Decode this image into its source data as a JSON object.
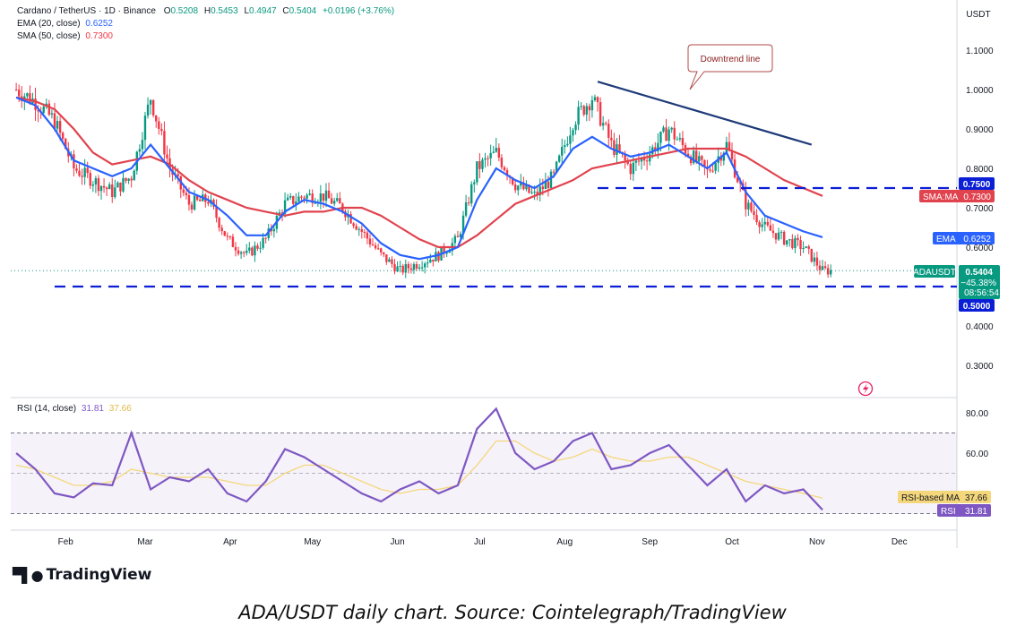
{
  "symbol_line": {
    "name": "Cardano / TetherUS · 1D · Binance",
    "open_label": "O",
    "open": "0.5208",
    "high_label": "H",
    "high": "0.5453",
    "low_label": "L",
    "low": "0.4947",
    "close_label": "C",
    "close": "0.5404",
    "change": "+0.0196 (+3.76%)"
  },
  "indicators": {
    "ema": {
      "label": "EMA (20, close)",
      "value": "0.6252"
    },
    "sma": {
      "label": "SMA (50, close)",
      "value": "0.7300"
    },
    "rsi": {
      "label": "RSI (14, close)",
      "value": "31.81",
      "ma_value": "37.66"
    }
  },
  "currency": "USDT",
  "annotation": "Downtrend line",
  "price_tags": {
    "resistance": "0.7500",
    "sma_label": "SMA:MA",
    "sma": "0.7300",
    "ema_label": "EMA",
    "ema": "0.6252",
    "pair_label": "ADAUSDT",
    "last": "0.5404",
    "pct": "−45.38%",
    "countdown": "08:56:54",
    "support": "0.5000"
  },
  "rsi_tags": {
    "ma_label": "RSI-based MA",
    "ma": "37.66",
    "rsi_label": "RSI",
    "rsi": "31.81"
  },
  "brand": "TradingView",
  "caption": "ADA/USDT daily chart. Source: Cointelegraph/TradingView",
  "colors": {
    "up": "#089981",
    "down": "#f23645",
    "ema": "#2962ff",
    "sma": "#e0434e",
    "rsi": "#7e57c2",
    "rsi_ma": "#f5d77b",
    "trend": "#1e3a78",
    "level": "#0a1fd6"
  },
  "chart_data": [
    {
      "type": "candlestick",
      "title": "",
      "y_axis_ticks": [
        "1.1000",
        "1.0000",
        "0.9000",
        "0.8000",
        "0.7000",
        "0.6000",
        "0.4000",
        "0.3000"
      ],
      "x_axis_ticks": [
        "Feb",
        "Mar",
        "Apr",
        "May",
        "Jun",
        "Jul",
        "Aug",
        "Sep",
        "Oct",
        "Nov",
        "Dec"
      ],
      "ylim": [
        0.27,
        1.18
      ],
      "x": [
        "2024-01-14",
        "2024-01-21",
        "2024-01-28",
        "2024-02-04",
        "2024-02-11",
        "2024-02-18",
        "2024-02-25",
        "2024-03-03",
        "2024-03-10",
        "2024-03-17",
        "2024-03-24",
        "2024-03-31",
        "2024-04-07",
        "2024-04-14",
        "2024-04-21",
        "2024-04-28",
        "2024-05-05",
        "2024-05-12",
        "2024-05-19",
        "2024-05-26",
        "2024-06-02",
        "2024-06-09",
        "2024-06-16",
        "2024-06-23",
        "2024-06-30",
        "2024-07-07",
        "2024-07-14",
        "2024-07-21",
        "2024-07-28",
        "2024-08-04",
        "2024-08-11",
        "2024-08-18",
        "2024-08-25",
        "2024-09-01",
        "2024-09-08",
        "2024-09-15",
        "2024-09-22",
        "2024-09-29",
        "2024-10-06",
        "2024-10-13",
        "2024-10-20",
        "2024-10-27",
        "2024-11-03"
      ],
      "close": [
        1.0,
        0.97,
        0.92,
        0.8,
        0.77,
        0.74,
        0.78,
        0.98,
        0.8,
        0.71,
        0.72,
        0.62,
        0.58,
        0.62,
        0.71,
        0.73,
        0.73,
        0.7,
        0.64,
        0.58,
        0.54,
        0.56,
        0.58,
        0.62,
        0.8,
        0.84,
        0.76,
        0.73,
        0.78,
        0.92,
        0.98,
        0.86,
        0.8,
        0.84,
        0.9,
        0.84,
        0.79,
        0.86,
        0.71,
        0.65,
        0.62,
        0.6,
        0.5404
      ],
      "series": [
        {
          "name": "EMA (20, close)",
          "values": [
            0.98,
            0.96,
            0.9,
            0.82,
            0.8,
            0.78,
            0.8,
            0.86,
            0.8,
            0.74,
            0.72,
            0.68,
            0.63,
            0.63,
            0.69,
            0.72,
            0.71,
            0.69,
            0.66,
            0.61,
            0.58,
            0.57,
            0.58,
            0.6,
            0.72,
            0.8,
            0.77,
            0.75,
            0.78,
            0.85,
            0.88,
            0.85,
            0.83,
            0.84,
            0.86,
            0.83,
            0.8,
            0.84,
            0.74,
            0.68,
            0.66,
            0.64,
            0.6252
          ]
        },
        {
          "name": "SMA (50, close)",
          "values": [
            0.98,
            0.97,
            0.95,
            0.9,
            0.84,
            0.81,
            0.82,
            0.83,
            0.81,
            0.77,
            0.74,
            0.72,
            0.7,
            0.69,
            0.68,
            0.69,
            0.69,
            0.7,
            0.7,
            0.68,
            0.65,
            0.62,
            0.6,
            0.6,
            0.63,
            0.67,
            0.71,
            0.73,
            0.75,
            0.77,
            0.8,
            0.81,
            0.82,
            0.83,
            0.84,
            0.85,
            0.85,
            0.85,
            0.83,
            0.8,
            0.77,
            0.75,
            0.73
          ]
        }
      ],
      "levels": [
        {
          "label": "0.7500",
          "value": 0.75
        },
        {
          "label": "0.5000",
          "value": 0.5
        }
      ],
      "trendline": {
        "label": "Downtrend line",
        "from": [
          "2024-08-13",
          1.02
        ],
        "to": [
          "2024-10-30",
          0.86
        ]
      },
      "grid": false
    },
    {
      "type": "line",
      "title": "",
      "y_axis_ticks": [
        "80.00",
        "60.00"
      ],
      "ylim": [
        20,
        88
      ],
      "bands": [
        30,
        50,
        70
      ],
      "series": [
        {
          "name": "RSI (14, close)",
          "values": [
            60,
            52,
            40,
            38,
            45,
            44,
            70,
            42,
            48,
            46,
            52,
            40,
            36,
            46,
            62,
            58,
            52,
            46,
            40,
            36,
            42,
            46,
            40,
            44,
            72,
            82,
            60,
            52,
            56,
            66,
            70,
            52,
            54,
            60,
            64,
            54,
            44,
            52,
            36,
            44,
            40,
            42,
            31.81
          ]
        },
        {
          "name": "RSI-based MA",
          "values": [
            54,
            52,
            48,
            44,
            44,
            46,
            52,
            50,
            48,
            48,
            48,
            46,
            44,
            44,
            50,
            54,
            54,
            50,
            46,
            42,
            40,
            42,
            42,
            44,
            54,
            66,
            66,
            60,
            56,
            58,
            62,
            58,
            56,
            56,
            58,
            58,
            54,
            50,
            46,
            44,
            42,
            40,
            37.66
          ]
        }
      ]
    }
  ]
}
